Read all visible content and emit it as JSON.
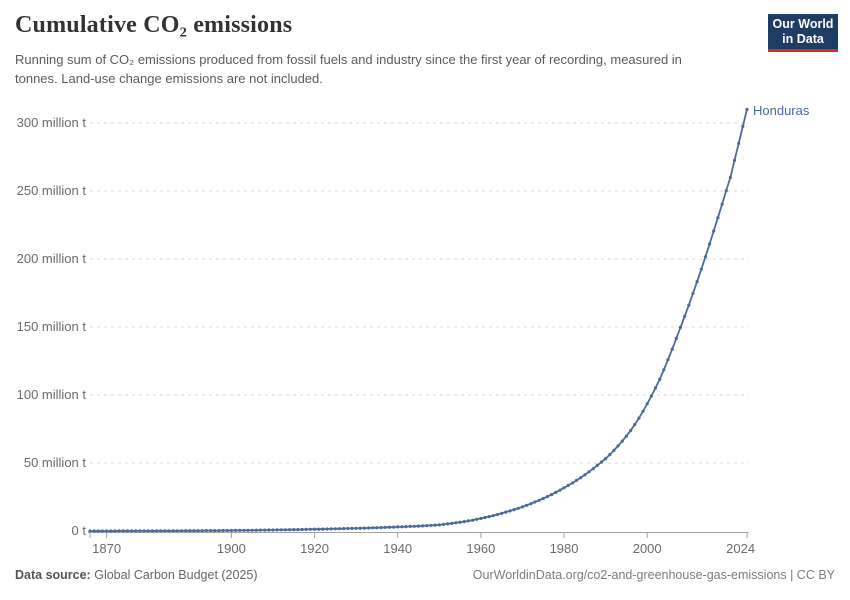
{
  "header": {
    "title": "Cumulative CO₂ emissions",
    "subtitle": "Running sum of CO₂ emissions produced from fossil fuels and industry since the first year of recording, measured in tonnes. Land-use change emissions are not included.",
    "logo": {
      "line1": "Our World",
      "line2": "in Data"
    }
  },
  "footer": {
    "data_source_label": "Data source:",
    "data_source_value": "Global Carbon Budget (2025)",
    "citation": "OurWorldinData.org/co2-and-greenhouse-gas-emissions | CC BY"
  },
  "colors": {
    "series_blue": "#4c6a9c",
    "logo_navy": "#1d3d63",
    "logo_red": "#e0291d",
    "gridline": "#d9d9d9",
    "axis": "#a3a3a3",
    "tick_text": "#6b6b6b"
  },
  "chart_data": {
    "type": "line",
    "title": "Cumulative CO₂ emissions",
    "xlabel": "",
    "ylabel": "",
    "unit": "million tonnes CO₂",
    "grid": "dashed horizontal",
    "legend_position": "end-of-line entity label",
    "xlim": [
      1866,
      2024
    ],
    "ylim": [
      0,
      310
    ],
    "x_ticks": [
      {
        "label": "1870",
        "year": 1870
      },
      {
        "label": "1900",
        "year": 1900
      },
      {
        "label": "1920",
        "year": 1920
      },
      {
        "label": "1940",
        "year": 1940
      },
      {
        "label": "1960",
        "year": 1960
      },
      {
        "label": "1980",
        "year": 1980
      },
      {
        "label": "2000",
        "year": 2000
      },
      {
        "label": "2024",
        "year": 2024
      }
    ],
    "y_ticks": [
      {
        "value": 0,
        "label": "0 t"
      },
      {
        "value": 50,
        "label": "50 million t"
      },
      {
        "value": 100,
        "label": "100 million t"
      },
      {
        "value": 150,
        "label": "150 million t"
      },
      {
        "value": 200,
        "label": "200 million t"
      },
      {
        "value": 250,
        "label": "250 million t"
      },
      {
        "value": 300,
        "label": "300 million t"
      }
    ],
    "series": [
      {
        "name": "Honduras",
        "color": "#4c6a9c",
        "start_year": 1866,
        "end_year": 2024,
        "values": [
          0,
          0.01,
          0.01,
          0.02,
          0.02,
          0.03,
          0.03,
          0.04,
          0.04,
          0.05,
          0.06,
          0.07,
          0.07,
          0.08,
          0.09,
          0.1,
          0.11,
          0.12,
          0.13,
          0.14,
          0.15,
          0.16,
          0.17,
          0.19,
          0.2,
          0.22,
          0.23,
          0.25,
          0.27,
          0.29,
          0.31,
          0.33,
          0.35,
          0.37,
          0.4,
          0.43,
          0.46,
          0.49,
          0.52,
          0.55,
          0.59,
          0.63,
          0.67,
          0.71,
          0.75,
          0.8,
          0.85,
          0.9,
          0.95,
          1.0,
          1.06,
          1.12,
          1.18,
          1.24,
          1.3,
          1.36,
          1.42,
          1.48,
          1.54,
          1.6,
          1.68,
          1.76,
          1.84,
          1.92,
          2.0,
          2.08,
          2.16,
          2.24,
          2.32,
          2.4,
          2.52,
          2.64,
          2.76,
          2.88,
          3.0,
          3.12,
          3.24,
          3.36,
          3.48,
          3.6,
          3.78,
          3.96,
          4.14,
          4.32,
          4.5,
          4.85,
          5.2,
          5.6,
          6.0,
          6.45,
          6.9,
          7.4,
          7.95,
          8.6,
          9.25,
          9.9,
          10.6,
          11.35,
          12.15,
          13.0,
          13.9,
          14.8,
          15.75,
          16.7,
          17.75,
          18.9,
          20.1,
          21.35,
          22.6,
          23.9,
          25.3,
          26.8,
          28.4,
          30.0,
          31.75,
          33.5,
          35.3,
          37.2,
          39.2,
          41.3,
          43.5,
          45.8,
          48.2,
          50.7,
          53.25,
          56.2,
          59.3,
          62.6,
          66.1,
          69.75,
          73.85,
          78.25,
          82.95,
          88.05,
          93.5,
          99.2,
          105.2,
          111.5,
          118.5,
          126.0,
          133.7,
          141.6,
          149.7,
          157.8,
          166.0,
          174.6,
          183.4,
          192.4,
          201.6,
          211.0,
          220.6,
          230.4,
          240.3,
          250.2,
          260.0,
          272.5,
          285.0,
          297.5,
          310.0
        ]
      }
    ]
  }
}
